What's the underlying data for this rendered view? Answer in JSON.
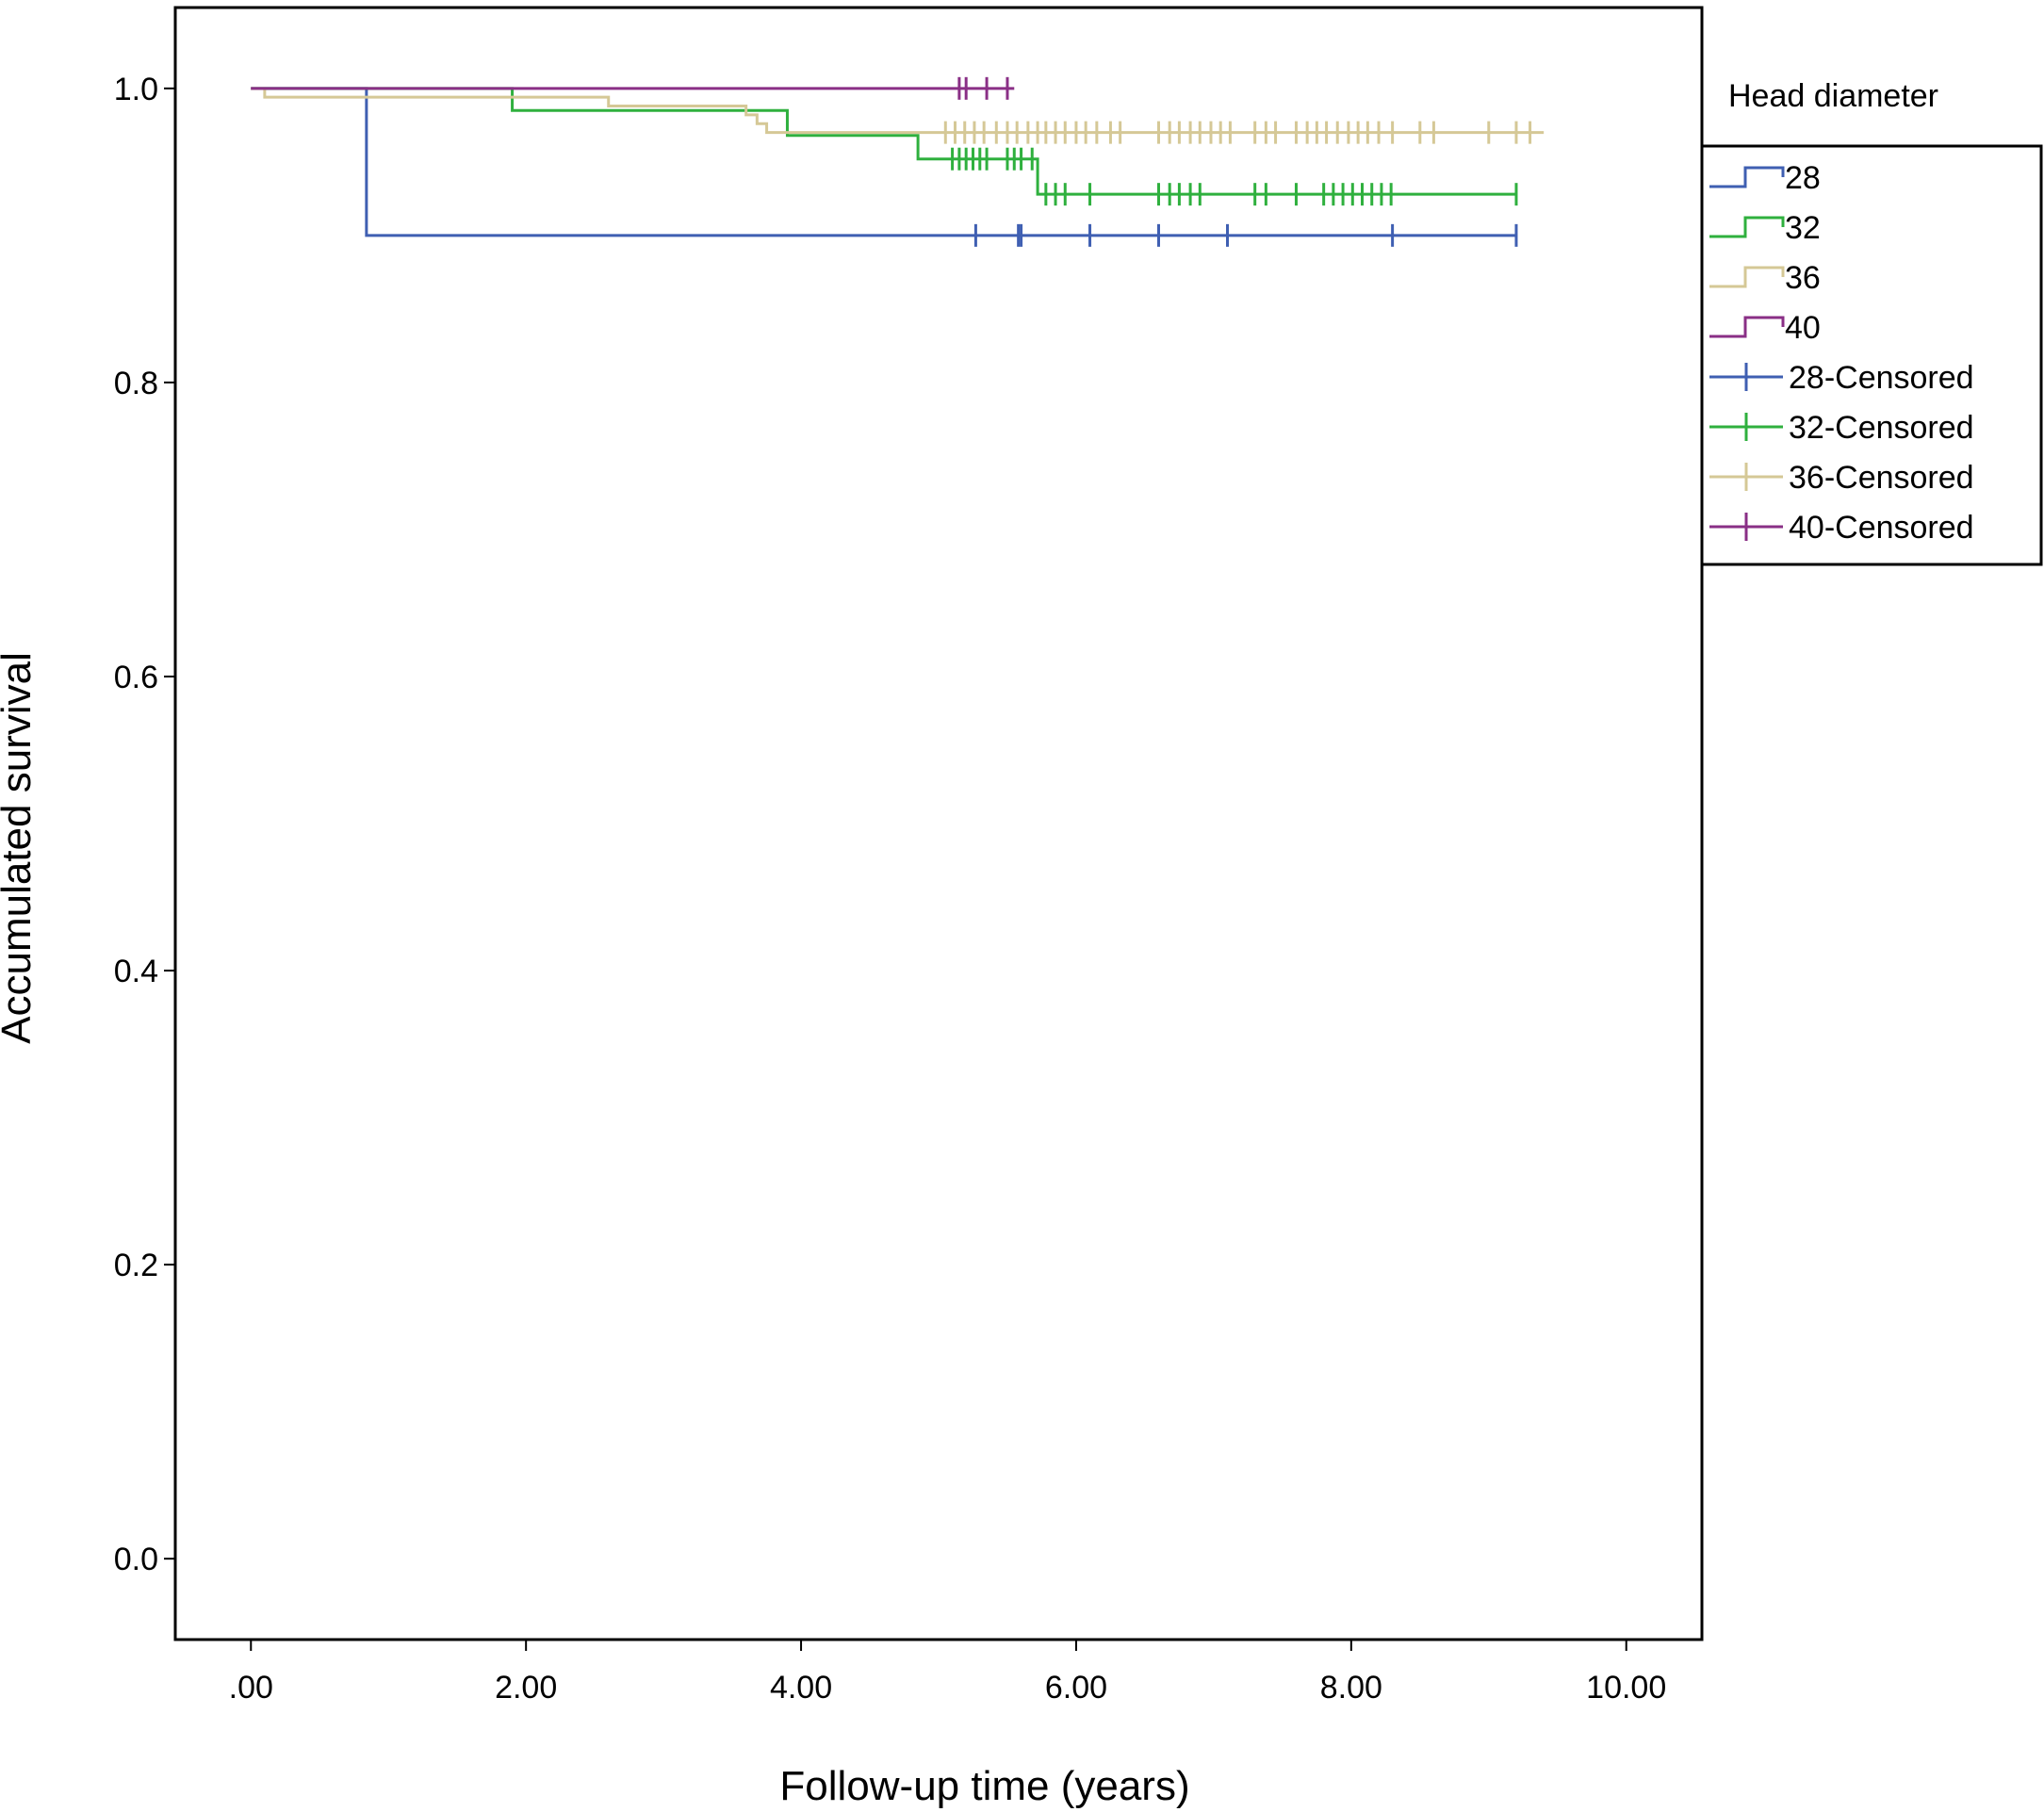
{
  "chart_data": {
    "type": "line",
    "subtype": "kaplan-meier step",
    "title": "",
    "xlabel": "Follow-up time  (years)",
    "ylabel": "Accumulated survival",
    "xlim": [
      -0.55,
      10.55
    ],
    "ylim": [
      -0.055,
      1.055
    ],
    "x_ticks": [
      0,
      2,
      4,
      6,
      8,
      10
    ],
    "x_tick_labels": [
      ".00",
      "2.00",
      "4.00",
      "6.00",
      "8.00",
      "10.00"
    ],
    "y_ticks": [
      0.0,
      0.2,
      0.4,
      0.6,
      0.8,
      1.0
    ],
    "y_tick_labels": [
      "0.0",
      "0.2",
      "0.4",
      "0.6",
      "0.8",
      "1.0"
    ],
    "grid": false,
    "legend_title": "Head diameter",
    "legend_placement": "right, outside plot",
    "legend_entries": [
      "28",
      "32",
      "36",
      "40",
      "28-Censored",
      "32-Censored",
      "36-Censored",
      "40-Censored"
    ],
    "series": [
      {
        "name": "28",
        "color": "#3f5fb2",
        "steps": [
          [
            0,
            1.0
          ],
          [
            0.84,
            0.9
          ],
          [
            9.2,
            0.9
          ]
        ],
        "censored": [
          [
            5.27,
            0.9
          ],
          [
            5.58,
            0.9
          ],
          [
            5.6,
            0.9
          ],
          [
            6.1,
            0.9
          ],
          [
            6.6,
            0.9
          ],
          [
            7.1,
            0.9
          ],
          [
            8.3,
            0.9
          ],
          [
            9.2,
            0.9
          ]
        ]
      },
      {
        "name": "32",
        "color": "#2fb03e",
        "steps": [
          [
            0,
            1.0
          ],
          [
            1.9,
            0.985
          ],
          [
            3.9,
            0.968
          ],
          [
            4.85,
            0.952
          ],
          [
            5.72,
            0.928
          ],
          [
            9.2,
            0.928
          ]
        ],
        "censored": [
          [
            5.1,
            0.952
          ],
          [
            5.15,
            0.952
          ],
          [
            5.2,
            0.952
          ],
          [
            5.25,
            0.952
          ],
          [
            5.3,
            0.952
          ],
          [
            5.35,
            0.952
          ],
          [
            5.5,
            0.952
          ],
          [
            5.55,
            0.952
          ],
          [
            5.6,
            0.952
          ],
          [
            5.68,
            0.952
          ],
          [
            5.78,
            0.928
          ],
          [
            5.85,
            0.928
          ],
          [
            5.92,
            0.928
          ],
          [
            6.1,
            0.928
          ],
          [
            6.6,
            0.928
          ],
          [
            6.68,
            0.928
          ],
          [
            6.75,
            0.928
          ],
          [
            6.83,
            0.928
          ],
          [
            6.9,
            0.928
          ],
          [
            7.3,
            0.928
          ],
          [
            7.38,
            0.928
          ],
          [
            7.6,
            0.928
          ],
          [
            7.8,
            0.928
          ],
          [
            7.87,
            0.928
          ],
          [
            7.94,
            0.928
          ],
          [
            8.01,
            0.928
          ],
          [
            8.08,
            0.928
          ],
          [
            8.15,
            0.928
          ],
          [
            8.22,
            0.928
          ],
          [
            8.29,
            0.928
          ],
          [
            9.2,
            0.928
          ]
        ]
      },
      {
        "name": "36",
        "color": "#d5c896",
        "steps": [
          [
            0,
            1.0
          ],
          [
            0.1,
            0.994
          ],
          [
            2.6,
            0.988
          ],
          [
            3.6,
            0.982
          ],
          [
            3.68,
            0.976
          ],
          [
            3.75,
            0.97
          ],
          [
            9.4,
            0.97
          ]
        ],
        "censored": [
          [
            5.05,
            0.97
          ],
          [
            5.12,
            0.97
          ],
          [
            5.19,
            0.97
          ],
          [
            5.26,
            0.97
          ],
          [
            5.33,
            0.97
          ],
          [
            5.42,
            0.97
          ],
          [
            5.5,
            0.97
          ],
          [
            5.57,
            0.97
          ],
          [
            5.65,
            0.97
          ],
          [
            5.72,
            0.97
          ],
          [
            5.78,
            0.97
          ],
          [
            5.85,
            0.97
          ],
          [
            5.92,
            0.97
          ],
          [
            6.0,
            0.97
          ],
          [
            6.07,
            0.97
          ],
          [
            6.15,
            0.97
          ],
          [
            6.25,
            0.97
          ],
          [
            6.32,
            0.97
          ],
          [
            6.6,
            0.97
          ],
          [
            6.68,
            0.97
          ],
          [
            6.75,
            0.97
          ],
          [
            6.83,
            0.97
          ],
          [
            6.9,
            0.97
          ],
          [
            6.98,
            0.97
          ],
          [
            7.05,
            0.97
          ],
          [
            7.12,
            0.97
          ],
          [
            7.3,
            0.97
          ],
          [
            7.38,
            0.97
          ],
          [
            7.45,
            0.97
          ],
          [
            7.6,
            0.97
          ],
          [
            7.68,
            0.97
          ],
          [
            7.75,
            0.97
          ],
          [
            7.82,
            0.97
          ],
          [
            7.9,
            0.97
          ],
          [
            7.98,
            0.97
          ],
          [
            8.05,
            0.97
          ],
          [
            8.12,
            0.97
          ],
          [
            8.2,
            0.97
          ],
          [
            8.3,
            0.97
          ],
          [
            8.5,
            0.97
          ],
          [
            8.6,
            0.97
          ],
          [
            9.0,
            0.97
          ],
          [
            9.2,
            0.97
          ],
          [
            9.3,
            0.97
          ]
        ]
      },
      {
        "name": "40",
        "color": "#8a2f86",
        "steps": [
          [
            0,
            1.0
          ],
          [
            5.55,
            1.0
          ]
        ],
        "censored": [
          [
            5.15,
            1.0
          ],
          [
            5.2,
            1.0
          ],
          [
            5.35,
            1.0
          ],
          [
            5.5,
            1.0
          ]
        ]
      }
    ]
  }
}
